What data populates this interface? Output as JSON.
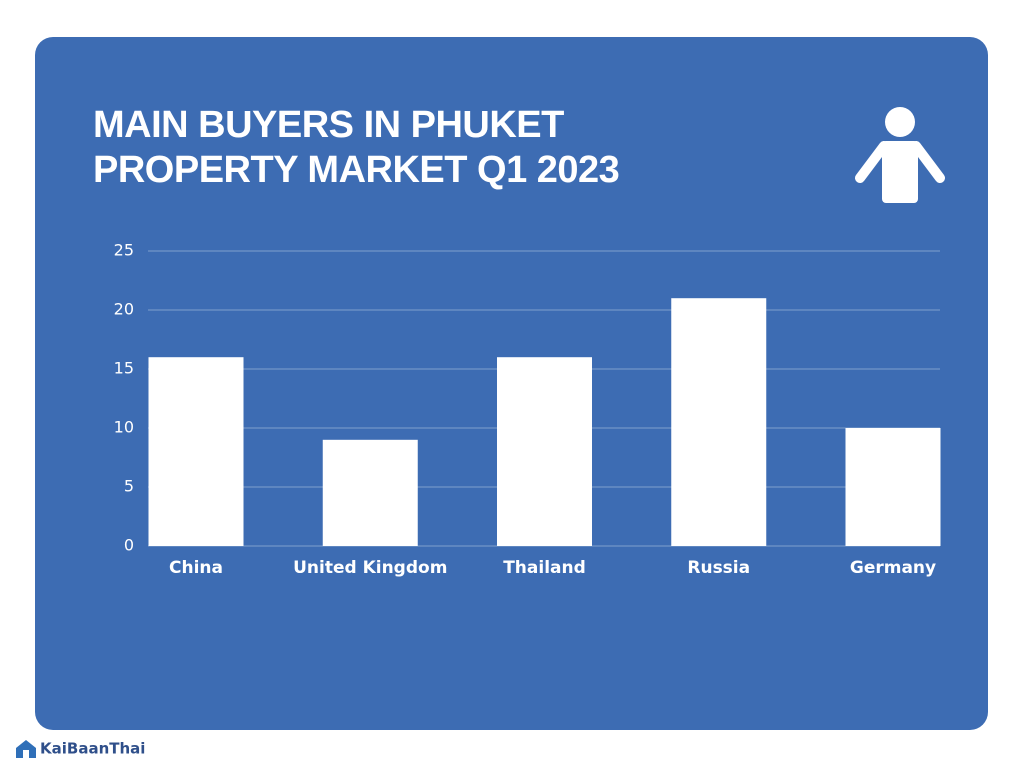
{
  "chart_data": {
    "type": "bar",
    "title": [
      "MAIN BUYERS IN PHUKET",
      "PROPERTY MARKET Q1 2023"
    ],
    "categories": [
      "China",
      "United Kingdom",
      "Thailand",
      "Russia",
      "Germany"
    ],
    "values": [
      16,
      9,
      16,
      21,
      10
    ],
    "color": "#ffffff",
    "ylim": [
      0,
      25
    ],
    "yticks": [
      0,
      5,
      10,
      15,
      20,
      25
    ],
    "grid": true,
    "watermark": "KaiBaanThai"
  }
}
